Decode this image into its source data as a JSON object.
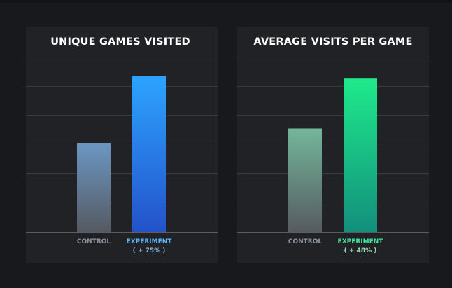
{
  "chart_data": [
    {
      "type": "bar",
      "title": "UNIQUE GAMES VISITED",
      "categories": [
        "CONTROL",
        "EXPERIMENT"
      ],
      "annotations": [
        "",
        "( + 75% )"
      ],
      "values": [
        1.0,
        1.75
      ],
      "ylim": [
        0,
        1.97
      ],
      "grid": true,
      "colors": {
        "control_top": "#6b97c4",
        "control_bottom": "#555a62",
        "experiment_top": "#2da3ff",
        "experiment_bottom": "#2353c9",
        "control_label": "#8d949e",
        "experiment_label": "#58b6ff",
        "annotation": "#8fb0cf"
      }
    },
    {
      "type": "bar",
      "title": "AVERAGE VISITS PER GAME",
      "categories": [
        "CONTROL",
        "EXPERIMENT"
      ],
      "annotations": [
        "",
        "( + 48% )"
      ],
      "values": [
        1.0,
        1.48
      ],
      "ylim": [
        0,
        1.69
      ],
      "grid": true,
      "colors": {
        "control_top": "#73b79a",
        "control_bottom": "#565b61",
        "experiment_top": "#1eea8b",
        "experiment_bottom": "#128f7c",
        "control_label": "#8d949e",
        "experiment_label": "#40e49b",
        "annotation": "#9adbb8"
      }
    }
  ]
}
